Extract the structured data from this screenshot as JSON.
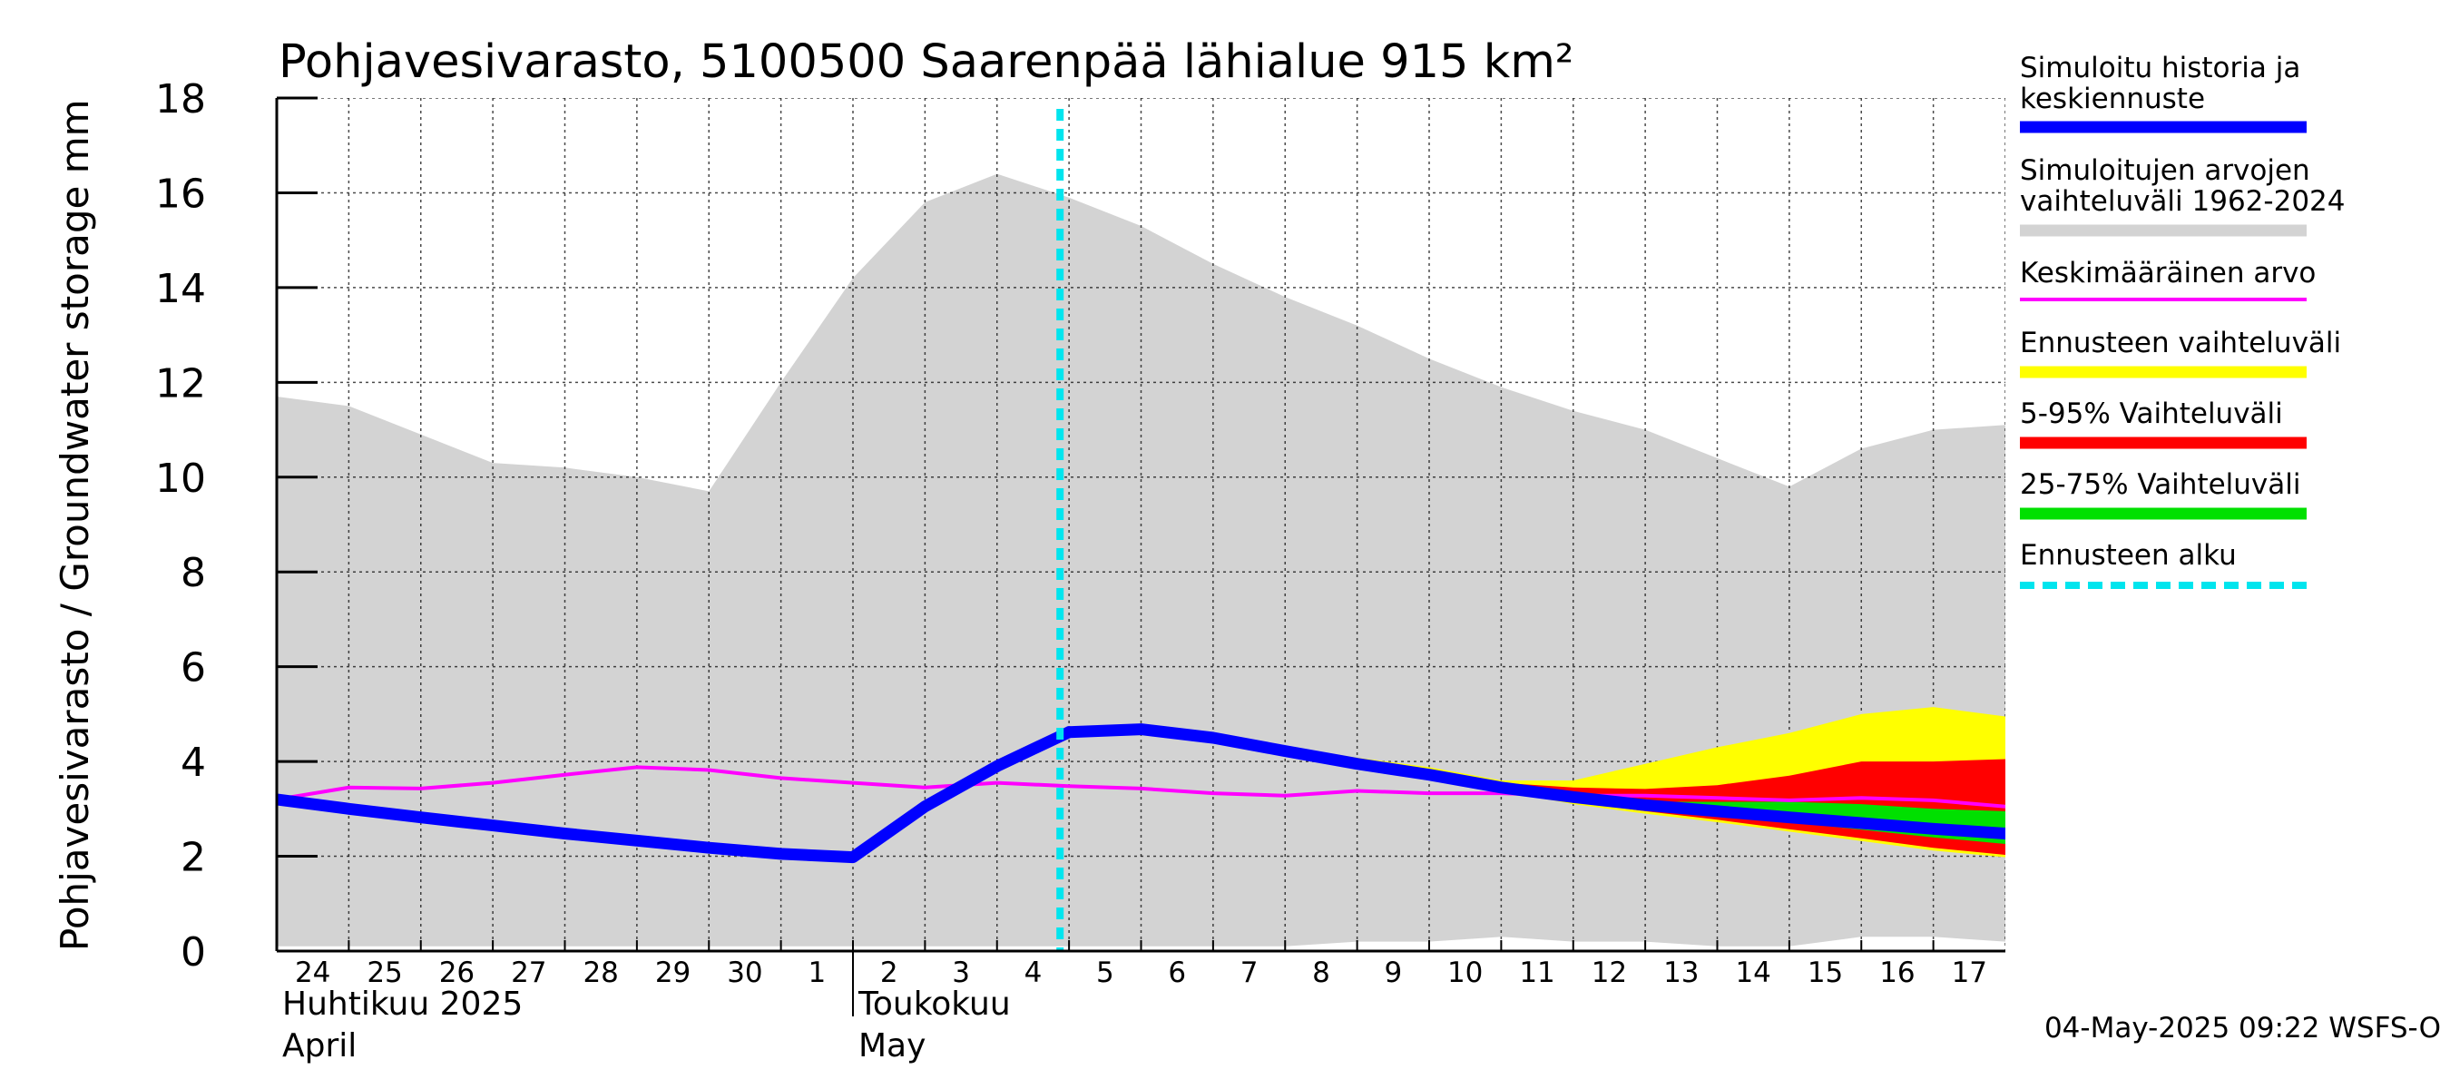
{
  "chart_data": {
    "type": "area",
    "title": "Pohjavesivarasto, 5100500 Saarenpää lähialue 915 km²",
    "ylabel": "Pohjavesivarasto / Groundwater storage   mm",
    "ylim": [
      0,
      18
    ],
    "yticks": [
      0,
      2,
      4,
      6,
      8,
      10,
      12,
      14,
      16,
      18
    ],
    "grid": true,
    "legend_position": "right",
    "x_start": "2025-04-23",
    "x_end": "2025-05-17",
    "day_ticks": [
      "24",
      "25",
      "26",
      "27",
      "28",
      "29",
      "30",
      "1",
      "2",
      "3",
      "4",
      "5",
      "6",
      "7",
      "8",
      "9",
      "10",
      "11",
      "12",
      "13",
      "14",
      "15",
      "16",
      "17"
    ],
    "month_labels": [
      {
        "fi": "Huhtikuu  2025",
        "en": "April",
        "start": "2025-04-23"
      },
      {
        "fi": "Toukokuu",
        "en": "May",
        "start": "2025-05-01"
      }
    ],
    "forecast_start": "2025-05-03T21:00",
    "history_range": {
      "dates": [
        "2025-04-23",
        "2025-04-24",
        "2025-04-25",
        "2025-04-26",
        "2025-04-27",
        "2025-04-28",
        "2025-04-29",
        "2025-04-30",
        "2025-05-01",
        "2025-05-02",
        "2025-05-03",
        "2025-05-04",
        "2025-05-05",
        "2025-05-06",
        "2025-05-07",
        "2025-05-08",
        "2025-05-09",
        "2025-05-10",
        "2025-05-11",
        "2025-05-12",
        "2025-05-13",
        "2025-05-14",
        "2025-05-15",
        "2025-05-16",
        "2025-05-17"
      ],
      "upper": [
        11.7,
        11.5,
        10.9,
        10.3,
        10.2,
        10.0,
        9.7,
        12.0,
        14.2,
        15.8,
        16.4,
        15.9,
        15.3,
        14.5,
        13.8,
        13.2,
        12.5,
        11.9,
        11.4,
        11.0,
        10.4,
        9.8,
        10.6,
        11.0,
        11.1
      ],
      "lower": [
        0.1,
        0.1,
        0.1,
        0.1,
        0.1,
        0.1,
        0.1,
        0.1,
        0.1,
        0.1,
        0.1,
        0.1,
        0.1,
        0.1,
        0.1,
        0.2,
        0.2,
        0.3,
        0.2,
        0.2,
        0.1,
        0.1,
        0.3,
        0.3,
        0.2
      ]
    },
    "mean": {
      "dates": [
        "2025-04-23",
        "2025-04-24",
        "2025-04-25",
        "2025-04-26",
        "2025-04-27",
        "2025-04-28",
        "2025-04-29",
        "2025-04-30",
        "2025-05-01",
        "2025-05-02",
        "2025-05-03",
        "2025-05-04",
        "2025-05-05",
        "2025-05-06",
        "2025-05-07",
        "2025-05-08",
        "2025-05-09",
        "2025-05-10",
        "2025-05-11",
        "2025-05-12",
        "2025-05-13",
        "2025-05-14",
        "2025-05-15",
        "2025-05-16",
        "2025-05-17"
      ],
      "values": [
        3.2,
        3.45,
        3.43,
        3.55,
        3.72,
        3.88,
        3.82,
        3.65,
        3.55,
        3.45,
        3.55,
        3.48,
        3.43,
        3.33,
        3.28,
        3.38,
        3.33,
        3.33,
        3.28,
        3.28,
        3.23,
        3.18,
        3.23,
        3.18,
        3.05
      ]
    },
    "history": {
      "dates": [
        "2025-04-23",
        "2025-04-24",
        "2025-04-25",
        "2025-04-26",
        "2025-04-27",
        "2025-04-28",
        "2025-04-29",
        "2025-04-30",
        "2025-05-01",
        "2025-05-02",
        "2025-05-03",
        "2025-05-04"
      ],
      "values": [
        3.2,
        3.0,
        2.82,
        2.65,
        2.48,
        2.33,
        2.18,
        2.05,
        1.98,
        3.05,
        3.9,
        4.62
      ]
    },
    "forecast_median": {
      "dates": [
        "2025-05-04",
        "2025-05-05",
        "2025-05-06",
        "2025-05-07",
        "2025-05-08",
        "2025-05-09",
        "2025-05-10",
        "2025-05-11",
        "2025-05-12",
        "2025-05-13",
        "2025-05-14",
        "2025-05-15",
        "2025-05-16",
        "2025-05-17"
      ],
      "values": [
        4.62,
        4.68,
        4.5,
        4.22,
        3.95,
        3.72,
        3.45,
        3.25,
        3.08,
        2.95,
        2.82,
        2.7,
        2.58,
        2.48
      ]
    },
    "forecast_range": {
      "dates": [
        "2025-05-04",
        "2025-05-05",
        "2025-05-06",
        "2025-05-07",
        "2025-05-08",
        "2025-05-09",
        "2025-05-10",
        "2025-05-11",
        "2025-05-12",
        "2025-05-13",
        "2025-05-14",
        "2025-05-15",
        "2025-05-16",
        "2025-05-17"
      ],
      "upper": [
        4.62,
        4.68,
        4.55,
        4.32,
        4.08,
        3.88,
        3.6,
        3.6,
        3.95,
        4.3,
        4.6,
        5.0,
        5.15,
        4.95
      ],
      "lower": [
        4.62,
        4.68,
        4.5,
        4.2,
        3.9,
        3.65,
        3.38,
        3.1,
        2.9,
        2.72,
        2.52,
        2.32,
        2.12,
        1.98
      ]
    },
    "forecast_p5_95": {
      "dates": [
        "2025-05-04",
        "2025-05-05",
        "2025-05-06",
        "2025-05-07",
        "2025-05-08",
        "2025-05-09",
        "2025-05-10",
        "2025-05-11",
        "2025-05-12",
        "2025-05-13",
        "2025-05-14",
        "2025-05-15",
        "2025-05-16",
        "2025-05-17"
      ],
      "upper": [
        4.62,
        4.68,
        4.53,
        4.28,
        4.02,
        3.82,
        3.55,
        3.45,
        3.42,
        3.5,
        3.7,
        4.0,
        4.0,
        4.05
      ],
      "lower": [
        4.62,
        4.68,
        4.5,
        4.2,
        3.92,
        3.68,
        3.4,
        3.15,
        2.95,
        2.77,
        2.57,
        2.38,
        2.18,
        2.03
      ]
    },
    "forecast_p25_75": {
      "dates": [
        "2025-05-04",
        "2025-05-05",
        "2025-05-06",
        "2025-05-07",
        "2025-05-08",
        "2025-05-09",
        "2025-05-10",
        "2025-05-11",
        "2025-05-12",
        "2025-05-13",
        "2025-05-14",
        "2025-05-15",
        "2025-05-16",
        "2025-05-17"
      ],
      "upper": [
        4.62,
        4.68,
        4.5,
        4.22,
        3.95,
        3.72,
        3.45,
        3.28,
        3.15,
        3.15,
        3.15,
        3.1,
        3.0,
        2.95
      ],
      "lower": [
        4.62,
        4.68,
        4.5,
        4.22,
        3.95,
        3.72,
        3.45,
        3.22,
        3.04,
        2.88,
        2.72,
        2.56,
        2.4,
        2.26
      ]
    },
    "legend": [
      {
        "label": "Simuloitu historia ja\nkeskiennuste",
        "color": "#0000ff",
        "style": "thick"
      },
      {
        "label": "Simuloitujen arvojen\nvaihteluväli 1962-2024",
        "color": "#d3d3d3",
        "style": "band"
      },
      {
        "label": "Keskimääräinen arvo",
        "color": "#ff00ff",
        "style": "line"
      },
      {
        "label": "Ennusteen vaihteluväli",
        "color": "#ffff00",
        "style": "band"
      },
      {
        "label": "5-95% Vaihteluväli",
        "color": "#ff0000",
        "style": "band"
      },
      {
        "label": "25-75% Vaihteluväli",
        "color": "#00e000",
        "style": "band"
      },
      {
        "label": "Ennusteen alku",
        "color": "#00e5ee",
        "style": "dashed"
      }
    ],
    "footer": "04-May-2025 09:22 WSFS-O"
  }
}
